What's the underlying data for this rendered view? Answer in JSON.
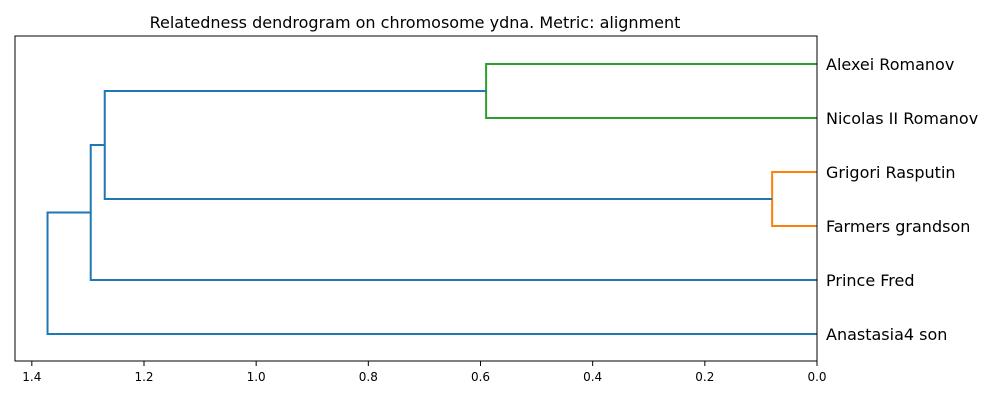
{
  "chart_data": {
    "type": "dendrogram",
    "title": "Relatedness dendrogram on chromosome ydna. Metric: alignment",
    "orientation": "left",
    "xlim": [
      1.43,
      0.0
    ],
    "x_ticks": [
      1.4,
      1.2,
      1.0,
      0.8,
      0.6,
      0.4,
      0.2,
      0.0
    ],
    "x_tick_labels": [
      "1.4",
      "1.2",
      "1.0",
      "0.8",
      "0.6",
      "0.4",
      "0.2",
      "0.0"
    ],
    "leaves": [
      "Alexei Romanov",
      "Nicolas II Romanov",
      "Grigori Rasputin",
      "Farmers grandson",
      "Prince Fred",
      "Anastasia4 son"
    ],
    "colors": {
      "green": "#2ca02c",
      "orange": "#ff7f0e",
      "blue": "#1f77b4"
    },
    "merges": [
      {
        "name": "cluster-romanov",
        "left": {
          "leaf": 0
        },
        "right": {
          "leaf": 1
        },
        "height": 0.59,
        "color": "green"
      },
      {
        "name": "cluster-rasputin",
        "left": {
          "leaf": 2
        },
        "right": {
          "leaf": 3
        },
        "height": 0.08,
        "color": "orange"
      },
      {
        "name": "cluster-a",
        "left": {
          "merge": 0
        },
        "right": {
          "merge": 1
        },
        "height": 1.27,
        "color": "blue"
      },
      {
        "name": "cluster-b",
        "left": {
          "merge": 2
        },
        "right": {
          "leaf": 4
        },
        "height": 1.295,
        "color": "blue"
      },
      {
        "name": "cluster-root",
        "left": {
          "merge": 3
        },
        "right": {
          "leaf": 5
        },
        "height": 1.372,
        "color": "blue"
      }
    ]
  }
}
